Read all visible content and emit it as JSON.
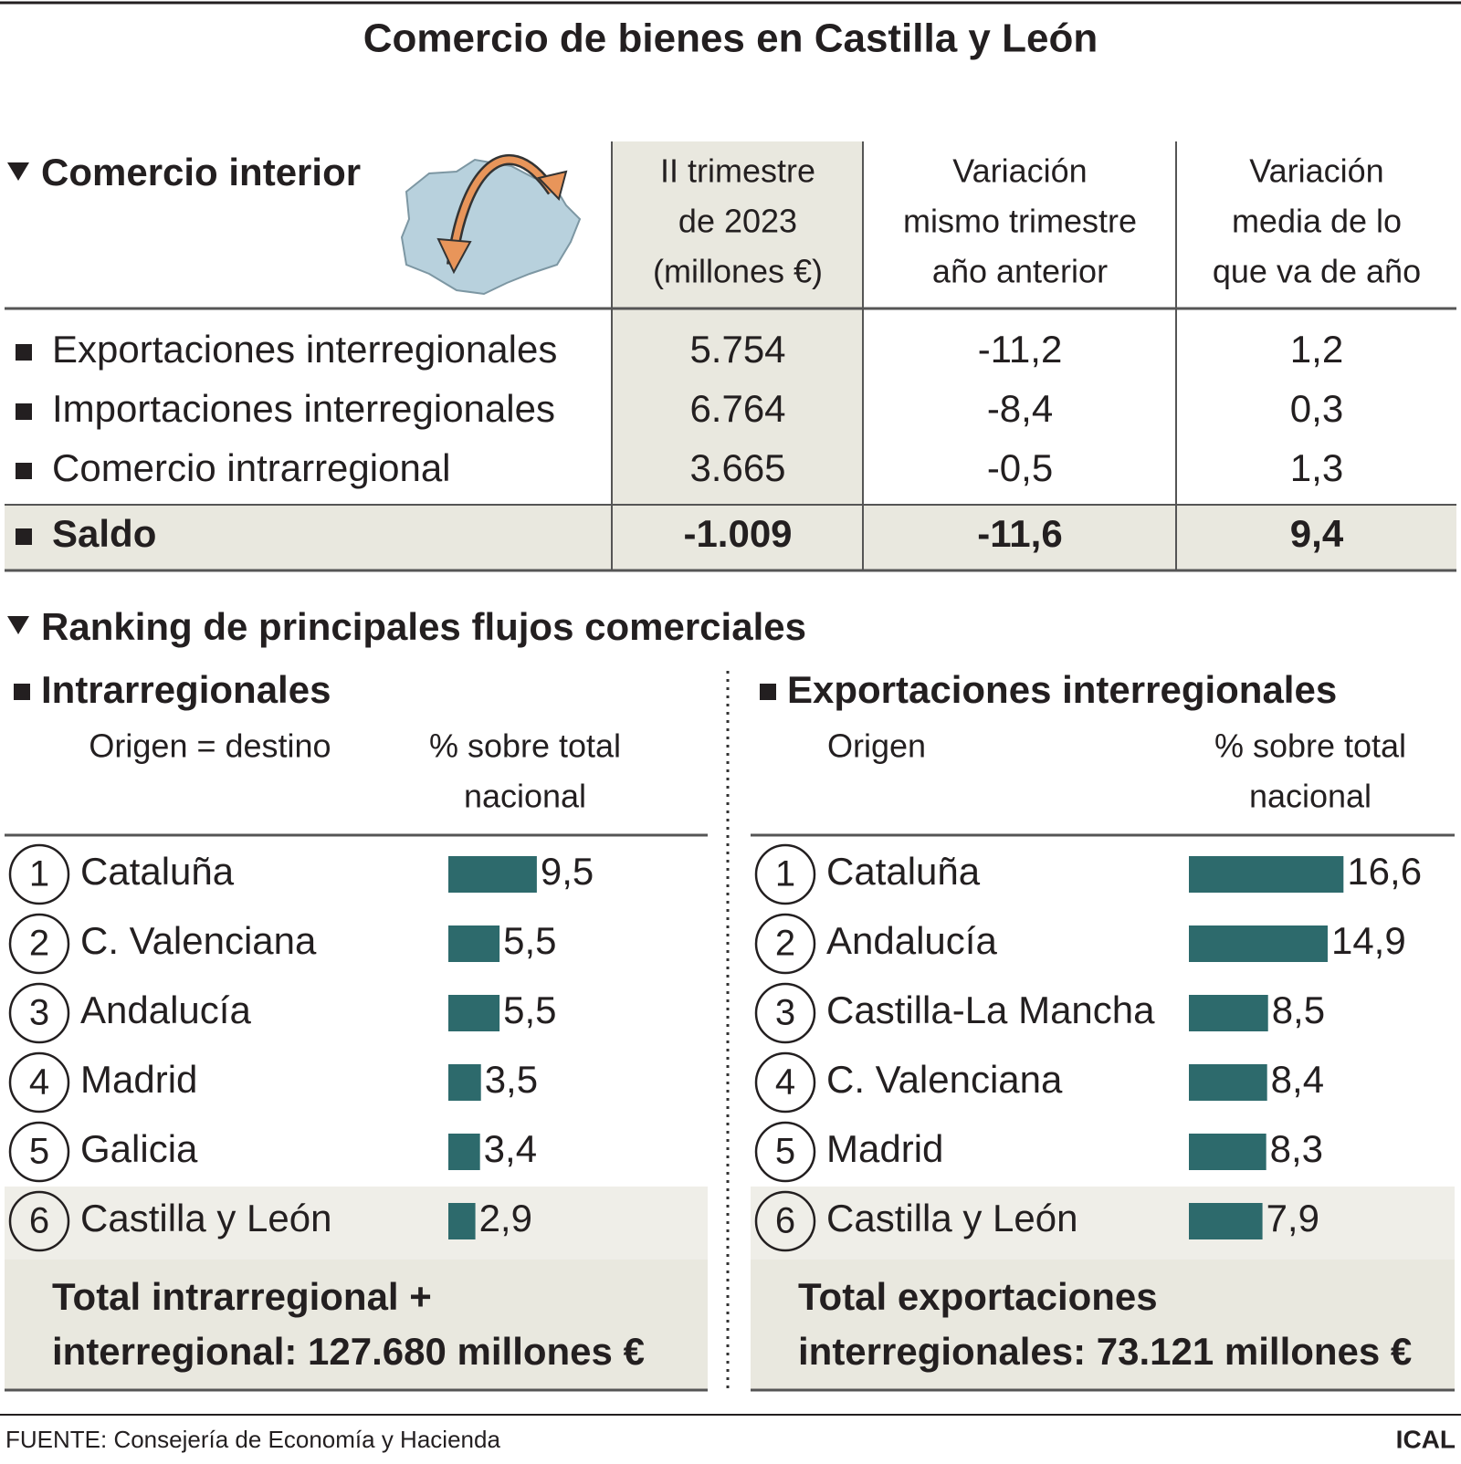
{
  "title": "Comercio de bienes en Castilla y León",
  "table": {
    "heading": "Comercio interior",
    "columns": [
      [
        "II trimestre",
        "de 2023",
        "(millones €)"
      ],
      [
        "Variación",
        "mismo trimestre",
        "año anterior"
      ],
      [
        "Variación",
        "media de lo",
        "que va de año"
      ]
    ],
    "rows": [
      [
        "Exportaciones interregionales",
        "5.754",
        "-11,2",
        "1,2"
      ],
      [
        "Importaciones interregionales",
        "6.764",
        "-8,4",
        "0,3"
      ],
      [
        "Comercio intrarregional",
        "3.665",
        "-0,5",
        "1,3"
      ],
      [
        "Saldo",
        "-1.009",
        "-11,6",
        "9,4"
      ]
    ]
  },
  "ranking_heading": "Ranking de principales flujos comerciales",
  "chart_data": [
    {
      "type": "bar",
      "title": "Intrarregionales",
      "columns": [
        "Origen = destino",
        [
          "% sobre total",
          "nacional"
        ]
      ],
      "ranks": [
        "1",
        "2",
        "3",
        "4",
        "5",
        "6"
      ],
      "categories": [
        "Cataluña",
        "C. Valenciana",
        "Andalucía",
        "Madrid",
        "Galicia",
        "Castilla y León"
      ],
      "values": [
        9.5,
        5.5,
        5.5,
        3.5,
        3.4,
        2.9
      ],
      "value_labels": [
        "9,5",
        "5,5",
        "5,5",
        "3,5",
        "3,4",
        "2,9"
      ],
      "color": "#2d6a6c",
      "total": [
        "Total intrarregional +",
        "interregional: 127.680 millones €"
      ]
    },
    {
      "type": "bar",
      "title": "Exportaciones interregionales",
      "columns": [
        "Origen",
        [
          "% sobre total",
          "nacional"
        ]
      ],
      "ranks": [
        "1",
        "2",
        "3",
        "4",
        "5",
        "6"
      ],
      "categories": [
        "Cataluña",
        "Andalucía",
        "Castilla-La Mancha",
        "C. Valenciana",
        "Madrid",
        "Castilla y León"
      ],
      "values": [
        16.6,
        14.9,
        8.5,
        8.4,
        8.3,
        7.9
      ],
      "value_labels": [
        "16,6",
        "14,9",
        "8,5",
        "8,4",
        "8,3",
        "7,9"
      ],
      "color": "#2d6a6c",
      "total": [
        "Total exportaciones",
        "interregionales: 73.121 millones €"
      ]
    }
  ],
  "source": "FUENTE: Consejería de Economía y Hacienda",
  "credit": "ICAL"
}
